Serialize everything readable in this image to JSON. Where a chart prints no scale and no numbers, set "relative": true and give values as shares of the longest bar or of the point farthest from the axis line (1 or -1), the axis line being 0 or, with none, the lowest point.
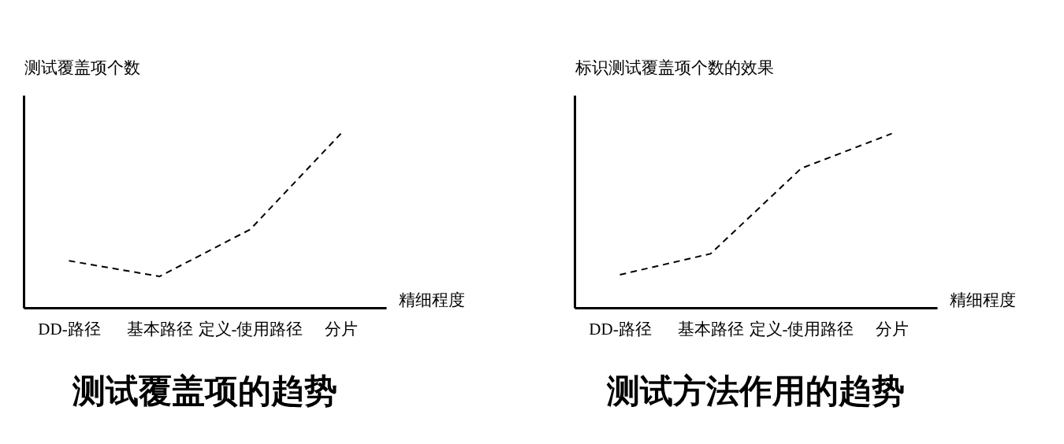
{
  "chart_data": [
    {
      "type": "line",
      "title": "测试覆盖项的趋势",
      "xlabel": "精细程度",
      "ylabel": "测试覆盖项个数",
      "categories": [
        "DD-路径",
        "基本路径",
        "定义-使用路径",
        "分片"
      ],
      "relative": true,
      "line_style": "dashed",
      "marker": "none",
      "grid": false,
      "series": [
        {
          "color": "#000000",
          "values": [
            0.27,
            0.18,
            0.45,
            1
          ]
        }
      ]
    },
    {
      "type": "line",
      "title": "测试方法作用的趋势",
      "xlabel": "精细程度",
      "ylabel": "标识测试覆盖项个数的效果",
      "categories": [
        "DD-路径",
        "基本路径",
        "定义-使用路径",
        "分片"
      ],
      "relative": true,
      "line_style": "dashed",
      "marker": "none",
      "grid": false,
      "series": [
        {
          "color": "#000000",
          "values": [
            0.19,
            0.31,
            0.8,
            1
          ]
        }
      ]
    }
  ]
}
